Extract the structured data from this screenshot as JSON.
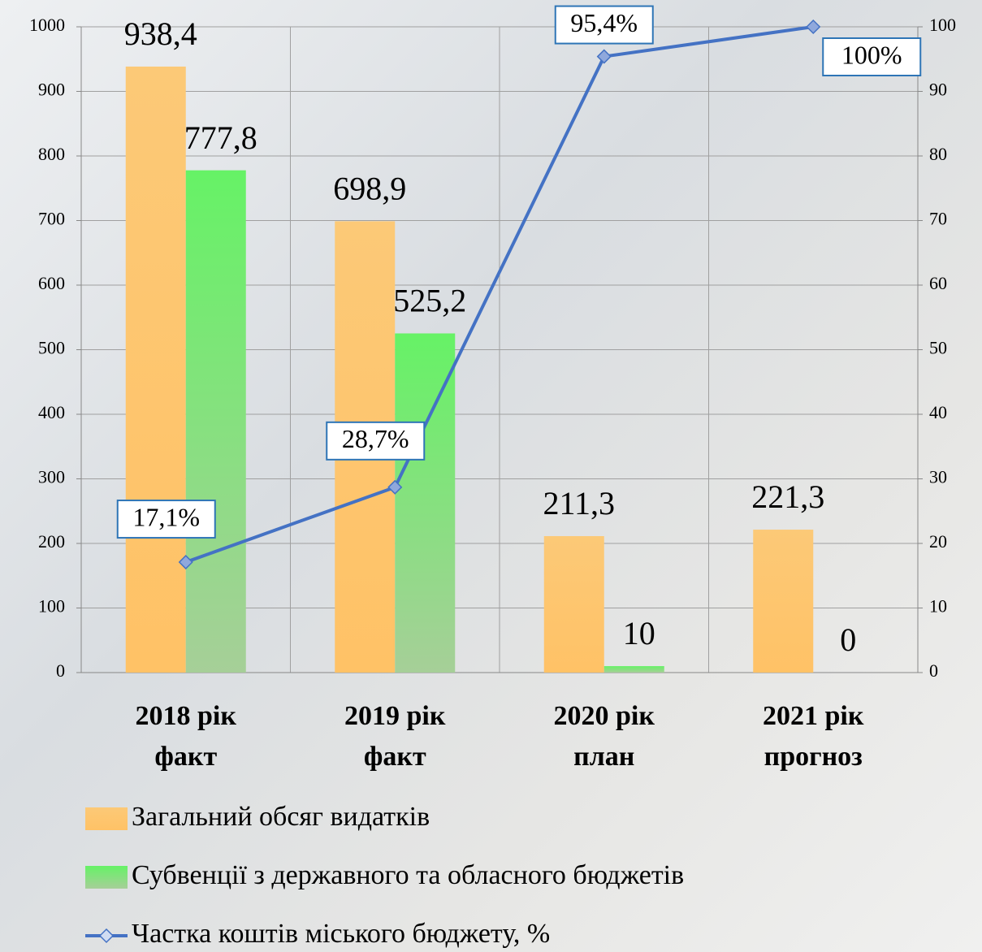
{
  "chart_data": {
    "type": "bar-line",
    "categories": [
      [
        "2018 рік",
        "факт"
      ],
      [
        "2019 рік",
        "факт"
      ],
      [
        "2020 рік",
        "план"
      ],
      [
        "2021 рік",
        "прогноз"
      ]
    ],
    "series": [
      {
        "name": "Загальний обсяг видатків",
        "color": "#fcc977",
        "type": "bar",
        "values": [
          938.4,
          698.9,
          211.3,
          221.3
        ],
        "value_labels": [
          "938,4",
          "698,9",
          "211,3",
          "221,3"
        ]
      },
      {
        "name": "Субвенції з державного та обласного бюджетів",
        "color": "#6cf06a",
        "type": "bar",
        "values": [
          777.8,
          525.2,
          10,
          0
        ],
        "value_labels": [
          "777,8",
          "525,2",
          "10",
          "0"
        ]
      },
      {
        "name": "Частка коштів міського бюджету, %",
        "color": "#4472c4",
        "type": "line",
        "axis": "y2",
        "values": [
          17.1,
          28.7,
          95.4,
          100
        ],
        "value_labels": [
          "17,1%",
          "28,7%",
          "95,4%",
          "100%"
        ]
      }
    ],
    "ylim": [
      0,
      1000
    ],
    "yticks": [
      0,
      100,
      200,
      300,
      400,
      500,
      600,
      700,
      800,
      900,
      1000
    ],
    "y2lim": [
      0,
      100
    ],
    "y2ticks": [
      0,
      10,
      20,
      30,
      40,
      50,
      60,
      70,
      80,
      90,
      100
    ],
    "grid": true,
    "legend": "bottom"
  }
}
